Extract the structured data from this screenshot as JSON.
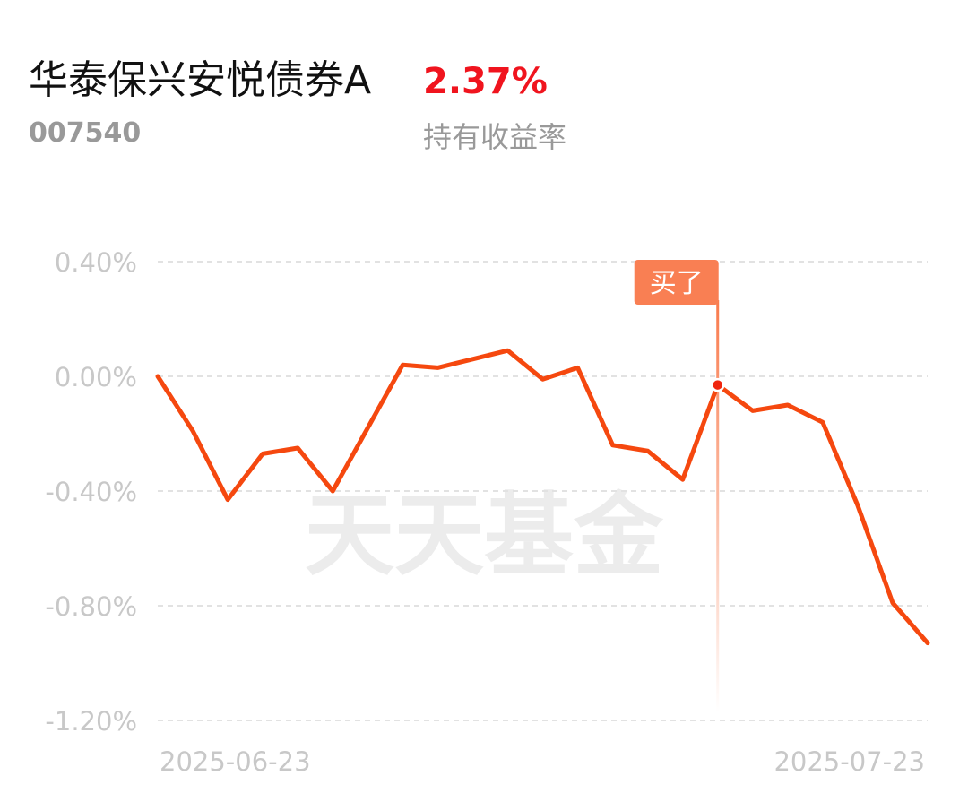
{
  "header": {
    "fund_name": "华泰保兴安悦债券A",
    "fund_code": "007540",
    "holding_return": "2.37%",
    "holding_return_label": "持有收益率"
  },
  "chart_data": {
    "type": "line",
    "watermark": "天天基金",
    "categories": [
      "2025-06-23",
      null,
      null,
      null,
      null,
      null,
      null,
      null,
      null,
      null,
      null,
      null,
      null,
      null,
      null,
      null,
      null,
      null,
      null,
      null,
      null,
      null,
      "2025-07-23"
    ],
    "values": [
      0.0,
      -0.19,
      -0.43,
      -0.27,
      -0.25,
      -0.4,
      -0.18,
      0.04,
      0.03,
      0.06,
      0.09,
      -0.01,
      0.03,
      -0.24,
      -0.26,
      -0.36,
      -0.03,
      -0.12,
      -0.1,
      -0.16,
      -0.45,
      -0.79,
      -0.93
    ],
    "color": "#f5480f",
    "ylim": [
      -1.2,
      0.4
    ],
    "yticks": [
      {
        "value": 0.4,
        "label": "0.40%"
      },
      {
        "value": 0,
        "label": "0.00%"
      },
      {
        "value": -0.4,
        "label": "-0.40%"
      },
      {
        "value": -0.8,
        "label": "-0.80%"
      },
      {
        "value": -1.2,
        "label": "-1.20%"
      }
    ],
    "grid": true,
    "annotations": [
      {
        "label": "买了",
        "point": 16
      }
    ]
  }
}
